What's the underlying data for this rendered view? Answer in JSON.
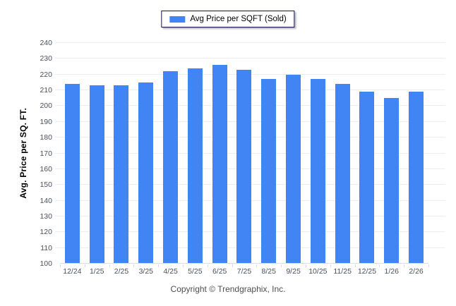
{
  "legend": {
    "label": "Avg Price per SQFT (Sold)"
  },
  "footer": {
    "copyright": "Copyright © Trendgraphix, Inc."
  },
  "colors": {
    "bar": "#4184f3",
    "grid": "#ededed",
    "axis_text": "#49505e",
    "legend_border": "#13134b"
  },
  "chart_data": {
    "type": "bar",
    "title": "",
    "xlabel": "",
    "ylabel": "Avg. Price per SQ. FT.",
    "categories": [
      "12/24",
      "1/25",
      "2/25",
      "3/25",
      "4/25",
      "5/25",
      "6/25",
      "7/25",
      "8/25",
      "9/25",
      "10/25",
      "11/25",
      "12/25",
      "1/26",
      "2/26"
    ],
    "series": [
      {
        "name": "Avg Price per SQFT (Sold)",
        "values": [
          214,
          213,
          213,
          215,
          222,
          224,
          226,
          223,
          217,
          220,
          217,
          214,
          209,
          205,
          209
        ]
      }
    ],
    "ylim": [
      100,
      240
    ],
    "ytick_step": 10,
    "grid": "horizontal",
    "legend_position": "top-center"
  }
}
